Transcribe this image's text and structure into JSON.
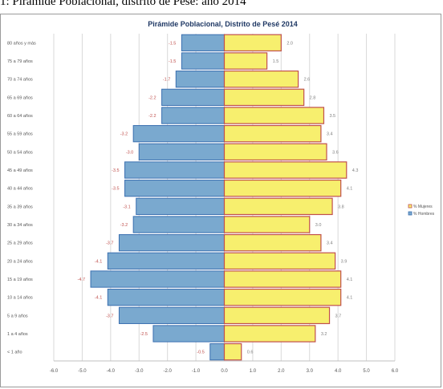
{
  "page": {
    "caption": "1: Pirámide Poblacional, distrito de Pesé: año 2014"
  },
  "colors": {
    "men_fill": "#7aa9cf",
    "men_stroke": "#3a6fb0",
    "women_fill": "#f7ef6e",
    "women_stroke": "#c0504d",
    "grid": "#d9d9d9",
    "axis_text": "#555555",
    "men_label": "#7f7f7f",
    "women_label": "#7f7f7f"
  },
  "chart_data": {
    "type": "bar",
    "orientation": "horizontal-population-pyramid",
    "title": "Pirámide Poblacional,  Distrito de Pesé 2014",
    "categories": [
      "80 años y más",
      "75 a 79 años",
      "70 a 74 años",
      "65 a 69 años",
      "60 a 64 años",
      "55 a 59 años",
      "50 a 54 años",
      "45 a 49 años",
      "40 a 44 años",
      "35 a 39 años",
      "30 a 34 años",
      "25 a 29 años",
      "20 a 24 años",
      "15 a 19 años",
      "10 a 14 años",
      "5 a 9 años",
      "1 a 4 años",
      "< 1 año"
    ],
    "series": [
      {
        "name": "% Mujeres",
        "values": [
          2.0,
          1.5,
          2.6,
          2.8,
          3.5,
          3.4,
          3.6,
          4.3,
          4.1,
          3.8,
          3.0,
          3.4,
          3.9,
          4.1,
          4.1,
          3.7,
          3.2,
          0.6
        ],
        "labels": [
          "2.0",
          "1.5",
          "2.6",
          "2.8",
          "3.5",
          "3.4",
          "3.6",
          "4.3",
          "4.1",
          "3.8",
          "3.0",
          "3.4",
          "3.9",
          "4.1",
          "4.1",
          "3.7",
          "3.2",
          "0.6"
        ]
      },
      {
        "name": "% Hombres",
        "values": [
          -1.5,
          -1.5,
          -1.7,
          -2.2,
          -2.2,
          -3.2,
          -3.0,
          -3.5,
          -3.5,
          -3.1,
          -3.2,
          -3.7,
          -4.1,
          -4.7,
          -4.1,
          -3.7,
          -2.5,
          -0.5
        ],
        "labels": [
          "-1.5",
          "-1.5",
          "-1.7",
          "-2.2",
          "-2.2",
          "-3.2",
          "-3.0",
          "-3.5",
          "-3.5",
          "-3.1",
          "-3.2",
          "-3.7",
          "-4.1",
          "-4.7",
          "-4.1",
          "-3.7",
          "-2.5",
          "-0.5"
        ]
      }
    ],
    "xlim": [
      -6.0,
      6.0
    ],
    "xticks": [
      "-6.0",
      "-5.0",
      "-4.0",
      "-3.0",
      "-2.0",
      "-1.0",
      "0.0",
      "1.0",
      "2.0",
      "3.0",
      "4.0",
      "5.0",
      "6.0"
    ],
    "legend_position": "right",
    "grid": true
  }
}
